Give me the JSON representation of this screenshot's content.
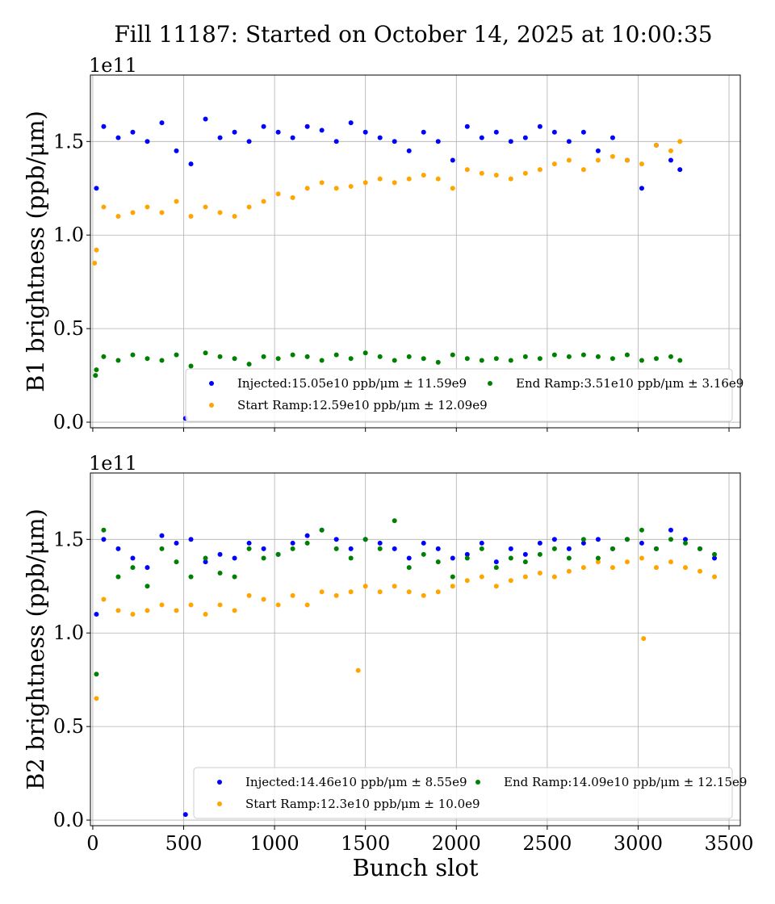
{
  "title": "Fill 11187: Started on October 14, 2025 at 10:00:35",
  "colors": {
    "Injected": "#0000ff",
    "Start Ramp": "#ffa500",
    "End Ramp": "#008000"
  },
  "chart_data": [
    {
      "type": "scatter",
      "ylabel": "B1 brightness (ppb/μm)",
      "offset_label": "1e11",
      "xlabel": "",
      "xlim": [
        -13,
        3562
      ],
      "ylim": [
        -0.03,
        1.855
      ],
      "xticks": [
        0,
        500,
        1000,
        1500,
        2000,
        2500,
        3000,
        3500
      ],
      "xtick_labels_shown": false,
      "yticks": [
        "0.0",
        "0.5",
        "1.0",
        "1.5"
      ],
      "grid": true,
      "legend_placement": "lower-right",
      "x": [
        20,
        60,
        140,
        220,
        300,
        380,
        460,
        540,
        620,
        700,
        780,
        860,
        940,
        1020,
        1100,
        1180,
        1260,
        1340,
        1420,
        1500,
        1580,
        1660,
        1740,
        1820,
        1900,
        1980,
        2060,
        2140,
        2220,
        2300,
        2380,
        2460,
        2540,
        2620,
        2700,
        2780,
        2860,
        2940,
        3020,
        3100,
        3180,
        3230
      ],
      "series": [
        {
          "name": "Injected",
          "legend": "Injected:15.05e10 ppb/μm ± 11.59e9",
          "color": "#0000ff",
          "values": [
            1.25,
            1.58,
            1.52,
            1.55,
            1.5,
            1.6,
            1.45,
            1.38,
            1.62,
            1.52,
            1.55,
            1.5,
            1.58,
            1.55,
            1.52,
            1.58,
            1.56,
            1.5,
            1.6,
            1.55,
            1.52,
            1.5,
            1.45,
            1.55,
            1.5,
            1.4,
            1.58,
            1.52,
            1.55,
            1.5,
            1.52,
            1.58,
            1.55,
            1.5,
            1.55,
            1.45,
            1.52,
            1.4,
            1.25,
            1.48,
            1.4,
            1.35
          ],
          "extra_points": [
            [
              510,
              0.02
            ]
          ]
        },
        {
          "name": "Start Ramp",
          "legend": "Start Ramp:12.59e10 ppb/μm ± 12.09e9",
          "color": "#ffa500",
          "values": [
            0.92,
            1.15,
            1.1,
            1.12,
            1.15,
            1.12,
            1.18,
            1.1,
            1.15,
            1.12,
            1.1,
            1.15,
            1.18,
            1.22,
            1.2,
            1.25,
            1.28,
            1.25,
            1.26,
            1.28,
            1.3,
            1.28,
            1.3,
            1.32,
            1.3,
            1.25,
            1.35,
            1.33,
            1.32,
            1.3,
            1.33,
            1.35,
            1.38,
            1.4,
            1.35,
            1.4,
            1.42,
            1.4,
            1.38,
            1.48,
            1.45,
            1.5
          ],
          "extra_points": [
            [
              10,
              0.85
            ]
          ]
        },
        {
          "name": "End Ramp",
          "legend": "End Ramp:3.51e10 ppb/μm ± 3.16e9",
          "color": "#008000",
          "values": [
            0.28,
            0.35,
            0.33,
            0.36,
            0.34,
            0.33,
            0.36,
            0.3,
            0.37,
            0.35,
            0.34,
            0.31,
            0.35,
            0.34,
            0.36,
            0.35,
            0.33,
            0.36,
            0.34,
            0.37,
            0.35,
            0.33,
            0.35,
            0.34,
            0.32,
            0.36,
            0.34,
            0.33,
            0.34,
            0.33,
            0.35,
            0.34,
            0.36,
            0.35,
            0.36,
            0.35,
            0.34,
            0.36,
            0.33,
            0.34,
            0.35,
            0.33
          ],
          "extra_points": [
            [
              15,
              0.25
            ]
          ]
        }
      ]
    },
    {
      "type": "scatter",
      "ylabel": "B2 brightness (ppb/μm)",
      "offset_label": "1e11",
      "xlabel": "Bunch slot",
      "xlim": [
        -13,
        3562
      ],
      "ylim": [
        -0.03,
        1.855
      ],
      "xticks": [
        0,
        500,
        1000,
        1500,
        2000,
        2500,
        3000,
        3500
      ],
      "xtick_labels": [
        "0",
        "500",
        "1000",
        "1500",
        "2000",
        "2500",
        "3000",
        "3500"
      ],
      "yticks": [
        "0.0",
        "0.5",
        "1.0",
        "1.5"
      ],
      "grid": true,
      "legend_placement": "lower-right",
      "x": [
        20,
        60,
        140,
        220,
        300,
        380,
        460,
        540,
        620,
        700,
        780,
        860,
        940,
        1020,
        1100,
        1180,
        1260,
        1340,
        1420,
        1500,
        1580,
        1660,
        1740,
        1820,
        1900,
        1980,
        2060,
        2140,
        2220,
        2300,
        2380,
        2460,
        2540,
        2620,
        2700,
        2780,
        2860,
        2940,
        3020,
        3100,
        3180,
        3260,
        3340,
        3420
      ],
      "series": [
        {
          "name": "Injected",
          "legend": "Injected:14.46e10 ppb/μm ± 8.55e9",
          "color": "#0000ff",
          "values": [
            1.1,
            1.5,
            1.45,
            1.4,
            1.35,
            1.52,
            1.48,
            1.5,
            1.38,
            1.42,
            1.4,
            1.48,
            1.45,
            1.42,
            1.48,
            1.52,
            1.55,
            1.5,
            1.45,
            1.5,
            1.48,
            1.45,
            1.4,
            1.48,
            1.45,
            1.4,
            1.42,
            1.48,
            1.38,
            1.45,
            1.42,
            1.48,
            1.5,
            1.45,
            1.48,
            1.5,
            1.45,
            1.5,
            1.48,
            1.45,
            1.55,
            1.5,
            1.45,
            1.4
          ],
          "extra_points": [
            [
              510,
              0.03
            ]
          ]
        },
        {
          "name": "Start Ramp",
          "legend": "Start Ramp:12.3e10 ppb/μm ± 10.0e9",
          "color": "#ffa500",
          "values": [
            0.65,
            1.18,
            1.12,
            1.1,
            1.12,
            1.15,
            1.12,
            1.15,
            1.1,
            1.15,
            1.12,
            1.2,
            1.18,
            1.15,
            1.2,
            1.15,
            1.22,
            1.2,
            1.22,
            1.25,
            1.22,
            1.25,
            1.22,
            1.2,
            1.22,
            1.25,
            1.28,
            1.3,
            1.25,
            1.28,
            1.3,
            1.32,
            1.3,
            1.33,
            1.35,
            1.38,
            1.35,
            1.38,
            1.4,
            1.35,
            1.38,
            1.35,
            1.33,
            1.3
          ],
          "extra_points": [
            [
              1460,
              0.8
            ],
            [
              3030,
              0.97
            ]
          ]
        },
        {
          "name": "End Ramp",
          "legend": "End Ramp:14.09e10 ppb/μm ± 12.15e9",
          "color": "#008000",
          "values": [
            0.78,
            1.55,
            1.3,
            1.35,
            1.25,
            1.45,
            1.38,
            1.3,
            1.4,
            1.32,
            1.3,
            1.45,
            1.4,
            1.42,
            1.45,
            1.48,
            1.55,
            1.45,
            1.4,
            1.5,
            1.45,
            1.6,
            1.35,
            1.42,
            1.38,
            1.3,
            1.4,
            1.45,
            1.35,
            1.4,
            1.38,
            1.42,
            1.45,
            1.4,
            1.5,
            1.4,
            1.45,
            1.5,
            1.55,
            1.45,
            1.5,
            1.48,
            1.45,
            1.42
          ],
          "extra_points": []
        }
      ]
    }
  ]
}
